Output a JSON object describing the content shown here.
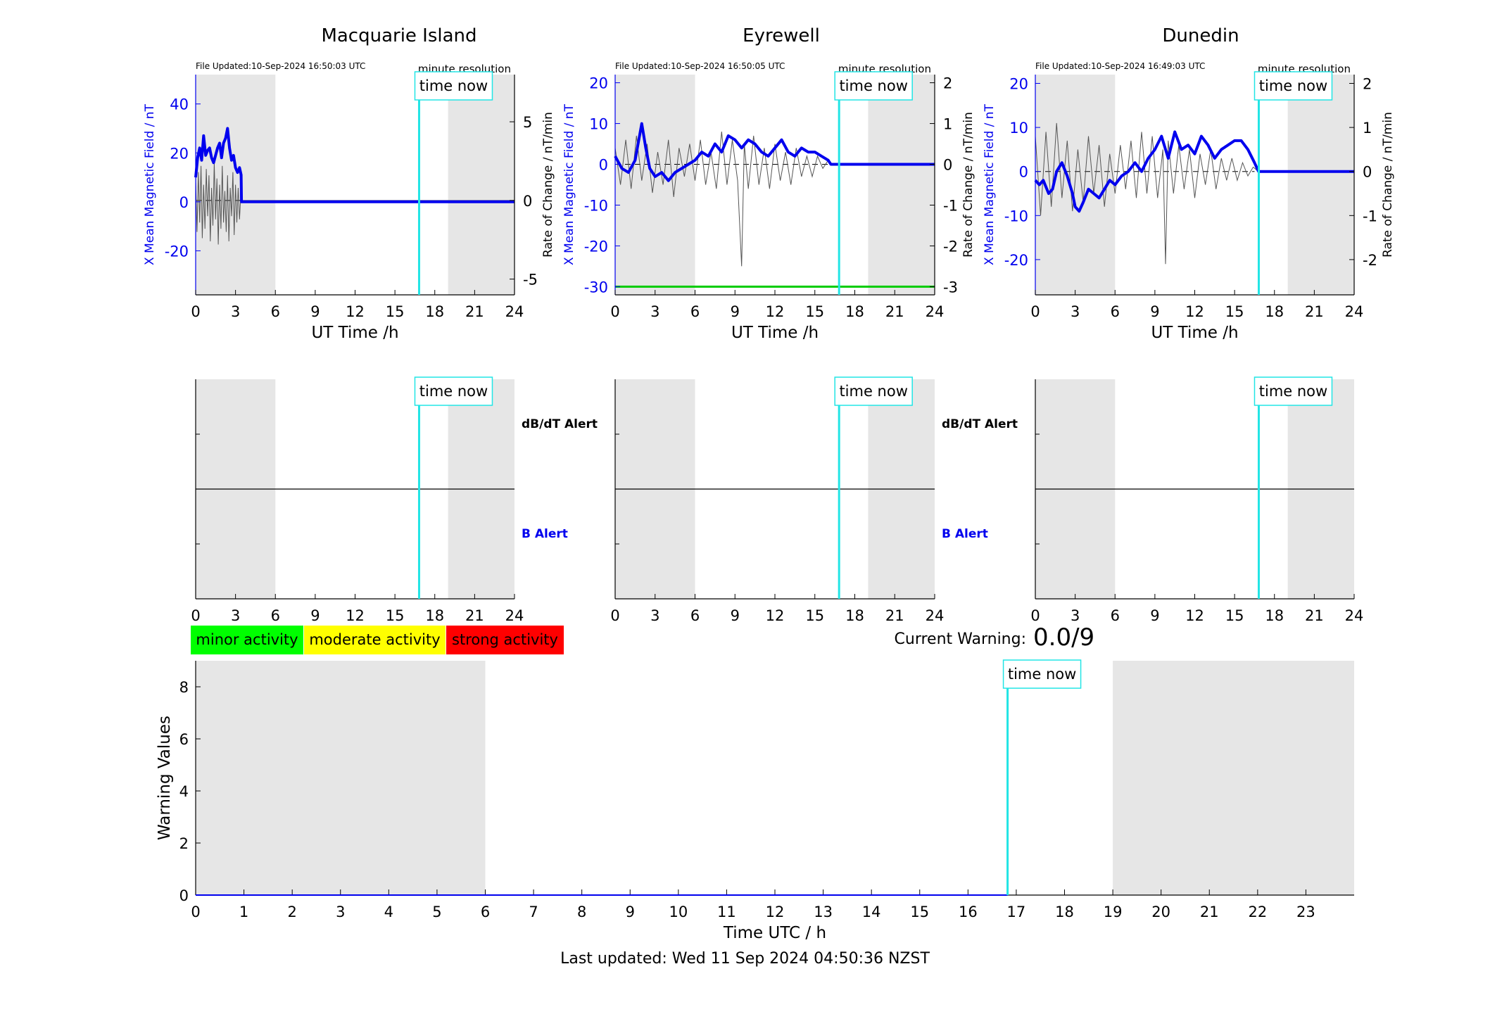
{
  "colors": {
    "night_shade": "#e6e6e6",
    "field_line": "#0000ee",
    "rate_line": "#555555",
    "time_now": "#22e5e5",
    "threshold": "#00cc00",
    "minor": "#00ff00",
    "moderate": "#ffff00",
    "strong": "#ff0000"
  },
  "time_now_label": "time now",
  "time_now_hour": 16.82,
  "stations": [
    {
      "title": "Macquarie Island",
      "file_updated": "File Updated:10-Sep-2024 16:50:03 UTC",
      "resolution": "minute resolution",
      "left_axis_label": "X Mean Magnetic Field / nT",
      "right_axis_label": "Rate of Change / nT/min",
      "xlabel": "UT Time /h"
    },
    {
      "title": "Eyrewell",
      "file_updated": "File Updated:10-Sep-2024 16:50:05 UTC",
      "resolution": "minute resolution",
      "left_axis_label": "X Mean Magnetic Field / nT",
      "right_axis_label": "Rate of Change / nT/min",
      "xlabel": "UT Time /h"
    },
    {
      "title": "Dunedin",
      "file_updated": "File Updated:10-Sep-2024 16:49:03 UTC",
      "resolution": "minute resolution",
      "left_axis_label": "X Mean Magnetic Field / nT",
      "right_axis_label": "Rate of Change / nT/min",
      "xlabel": "UT Time /h"
    }
  ],
  "alert_labels": {
    "dbdt": "dB/dT Alert",
    "b": "B Alert"
  },
  "legend": {
    "minor": "minor activity",
    "moderate": "moderate activity",
    "strong": "strong activity"
  },
  "current_warning": {
    "label": "Current Warning:",
    "value": "0.0/9"
  },
  "bottom_chart": {
    "xlabel": "Time UTC / h",
    "ylabel": "Warning Values"
  },
  "footer": "Last updated: Wed 11 Sep 2024 04:50:36 NZST",
  "chart_data": [
    {
      "type": "line",
      "title": "Macquarie Island",
      "xlabel": "UT Time /h",
      "ylabel": "X Mean Magnetic Field / nT",
      "y2label": "Rate of Change / nT/min",
      "xlim": [
        0,
        24
      ],
      "ylim": [
        -38,
        52
      ],
      "y2lim": [
        -6,
        8
      ],
      "xticks": [
        0,
        3,
        6,
        9,
        12,
        15,
        18,
        21,
        24
      ],
      "yticks": [
        -20,
        0,
        20,
        40
      ],
      "y2ticks": [
        -5,
        0,
        5
      ],
      "night_bands": [
        [
          0,
          6
        ],
        [
          19,
          24
        ]
      ],
      "series": [
        {
          "axis": "left",
          "style": "thick-blue",
          "x": [
            0,
            0.15,
            0.3,
            0.45,
            0.6,
            0.75,
            0.9,
            1.05,
            1.2,
            1.35,
            1.5,
            1.65,
            1.8,
            1.95,
            2.1,
            2.25,
            2.4,
            2.55,
            2.7,
            2.85,
            3.0,
            3.15,
            3.3,
            3.42,
            3.45,
            24
          ],
          "y": [
            10,
            18,
            22,
            17,
            27,
            19,
            21,
            22,
            18,
            16,
            19,
            22,
            24,
            18,
            24,
            26,
            30,
            22,
            17,
            19,
            14,
            12,
            14,
            11,
            0,
            0
          ]
        },
        {
          "axis": "right",
          "style": "thin-grey",
          "x": [
            0,
            0.1,
            0.2,
            0.3,
            0.4,
            0.5,
            0.6,
            0.7,
            0.8,
            0.9,
            1.0,
            1.1,
            1.2,
            1.3,
            1.4,
            1.5,
            1.6,
            1.7,
            1.8,
            1.9,
            2.0,
            2.1,
            2.2,
            2.3,
            2.4,
            2.5,
            2.6,
            2.7,
            2.8,
            2.9,
            3.0,
            3.1,
            3.2,
            3.3,
            3.4,
            3.45,
            24
          ],
          "y": [
            1.2,
            -2.0,
            1.8,
            -1.4,
            2.2,
            -2.4,
            1.0,
            -1.8,
            2.0,
            -1.0,
            1.6,
            -2.6,
            0.8,
            -1.6,
            2.4,
            -1.2,
            1.4,
            -2.8,
            1.0,
            -1.8,
            2.2,
            -1.4,
            0.6,
            -2.0,
            1.6,
            -2.6,
            0.8,
            -1.0,
            1.8,
            -2.2,
            1.0,
            -1.4,
            0.8,
            -1.2,
            0.4,
            0,
            0
          ]
        }
      ]
    },
    {
      "type": "line",
      "title": "Eyrewell",
      "xlabel": "UT Time /h",
      "ylabel": "X Mean Magnetic Field / nT",
      "y2label": "Rate of Change / nT/min",
      "xlim": [
        0,
        24
      ],
      "ylim": [
        -32,
        22
      ],
      "y2lim": [
        -3.2,
        2.2
      ],
      "xticks": [
        0,
        3,
        6,
        9,
        12,
        15,
        18,
        21,
        24
      ],
      "yticks": [
        -30,
        -20,
        -10,
        0,
        10,
        20
      ],
      "y2ticks": [
        -3,
        -2,
        -1,
        0,
        1,
        2
      ],
      "night_bands": [
        [
          0,
          6
        ],
        [
          19,
          24
        ]
      ],
      "threshold": {
        "axis": "left",
        "y": -30
      },
      "series": [
        {
          "axis": "left",
          "style": "thick-blue",
          "x": [
            0,
            0.5,
            1.0,
            1.5,
            2.0,
            2.3,
            2.6,
            3.0,
            3.5,
            4.0,
            4.5,
            5.0,
            5.5,
            6.0,
            6.5,
            7.0,
            7.5,
            8.0,
            8.5,
            9.0,
            9.5,
            10.0,
            10.5,
            11.0,
            11.5,
            12.0,
            12.5,
            13.0,
            13.5,
            14.0,
            14.5,
            15.0,
            15.5,
            16.0,
            16.2,
            24
          ],
          "y": [
            2,
            -1,
            -2,
            1,
            10,
            4,
            -1,
            -3,
            -2,
            -4,
            -2,
            -1,
            0,
            1,
            3,
            2,
            5,
            3,
            7,
            6,
            4,
            6,
            5,
            3,
            2,
            4,
            6,
            3,
            2,
            4,
            3,
            3,
            2,
            1,
            0,
            0
          ]
        },
        {
          "axis": "right",
          "style": "thin-grey",
          "x": [
            0,
            0.4,
            0.8,
            1.2,
            1.6,
            2.0,
            2.4,
            2.8,
            3.2,
            3.6,
            4.0,
            4.4,
            4.8,
            5.2,
            5.6,
            6.0,
            6.4,
            6.8,
            7.2,
            7.6,
            8.0,
            8.4,
            8.8,
            9.2,
            9.5,
            9.7,
            10.0,
            10.4,
            10.8,
            11.2,
            11.6,
            12.0,
            12.4,
            12.8,
            13.2,
            13.6,
            14.0,
            14.4,
            14.8,
            15.2,
            15.6,
            16.0,
            16.2,
            24
          ],
          "y": [
            0.4,
            -0.5,
            0.6,
            -0.6,
            0.7,
            -0.4,
            0.5,
            -0.7,
            0.3,
            -0.5,
            0.6,
            -0.8,
            0.4,
            -0.3,
            0.5,
            -0.4,
            0.6,
            -0.5,
            0.3,
            -0.6,
            0.8,
            -0.5,
            0.6,
            -0.4,
            -2.5,
            0.5,
            -0.6,
            0.7,
            -0.5,
            0.4,
            -0.6,
            0.5,
            -0.4,
            0.3,
            -0.5,
            0.4,
            -0.3,
            0.2,
            -0.3,
            0.2,
            -0.1,
            0.1,
            0,
            0
          ]
        }
      ]
    },
    {
      "type": "line",
      "title": "Dunedin",
      "xlabel": "UT Time /h",
      "ylabel": "X Mean Magnetic Field / nT",
      "y2label": "Rate of Change / nT/min",
      "xlim": [
        0,
        24
      ],
      "ylim": [
        -28,
        22
      ],
      "y2lim": [
        -2.8,
        2.2
      ],
      "xticks": [
        0,
        3,
        6,
        9,
        12,
        15,
        18,
        21,
        24
      ],
      "yticks": [
        -20,
        -10,
        0,
        10,
        20
      ],
      "y2ticks": [
        -2,
        -1,
        0,
        1,
        2
      ],
      "night_bands": [
        [
          0,
          6
        ],
        [
          19,
          24
        ]
      ],
      "series": [
        {
          "axis": "left",
          "style": "thick-blue",
          "x": [
            0,
            0.3,
            0.6,
            1.0,
            1.3,
            1.6,
            2.0,
            2.4,
            2.8,
            3.0,
            3.3,
            3.6,
            4.0,
            4.4,
            4.8,
            5.2,
            5.6,
            6.0,
            6.5,
            7.0,
            7.5,
            8.0,
            8.5,
            9.0,
            9.5,
            10.0,
            10.5,
            11.0,
            11.5,
            12.0,
            12.5,
            13.0,
            13.5,
            14.0,
            14.5,
            15.0,
            15.5,
            16.0,
            16.5,
            16.8,
            24
          ],
          "y": [
            -2,
            -3,
            -2,
            -5,
            -4,
            0,
            2,
            -1,
            -5,
            -8,
            -9,
            -7,
            -4,
            -5,
            -6,
            -4,
            -2,
            -3,
            -1,
            0,
            2,
            0,
            3,
            5,
            8,
            3,
            9,
            5,
            6,
            4,
            8,
            6,
            3,
            5,
            6,
            7,
            7,
            5,
            2,
            0,
            0
          ]
        },
        {
          "axis": "right",
          "style": "thin-grey",
          "x": [
            0,
            0.4,
            0.8,
            1.2,
            1.6,
            2.0,
            2.4,
            2.8,
            3.2,
            3.6,
            4.0,
            4.4,
            4.8,
            5.2,
            5.6,
            6.0,
            6.4,
            6.8,
            7.2,
            7.6,
            8.0,
            8.4,
            8.8,
            9.2,
            9.6,
            9.8,
            10.0,
            10.4,
            10.8,
            11.2,
            11.6,
            12.0,
            12.4,
            12.8,
            13.2,
            13.6,
            14.0,
            14.4,
            14.8,
            15.2,
            15.6,
            16.0,
            16.4,
            16.8,
            24
          ],
          "y": [
            0.8,
            -1.0,
            0.9,
            -0.8,
            1.1,
            -0.6,
            0.7,
            -0.9,
            0.5,
            -0.7,
            0.8,
            -0.5,
            0.6,
            -0.8,
            0.4,
            -0.5,
            0.6,
            -0.4,
            0.7,
            -0.6,
            0.9,
            -0.5,
            0.8,
            -0.6,
            0.5,
            -2.1,
            0.7,
            -0.5,
            0.6,
            -0.4,
            0.5,
            -0.6,
            0.4,
            -0.3,
            0.5,
            -0.4,
            0.3,
            -0.2,
            0.3,
            -0.2,
            0.2,
            -0.1,
            0.1,
            0,
            0
          ]
        }
      ]
    },
    {
      "type": "line",
      "title": "",
      "xlabel": "Time UTC / h",
      "ylabel": "Warning Values",
      "xlim": [
        0,
        24
      ],
      "ylim": [
        0,
        9
      ],
      "xticks": [
        0,
        1,
        2,
        3,
        4,
        5,
        6,
        7,
        8,
        9,
        10,
        11,
        12,
        13,
        14,
        15,
        16,
        17,
        18,
        19,
        20,
        21,
        22,
        23
      ],
      "yticks": [
        0,
        2,
        4,
        6,
        8
      ],
      "night_bands": [
        [
          0,
          6
        ],
        [
          19,
          24
        ]
      ],
      "series": [
        {
          "x": [
            0,
            16.82
          ],
          "y": [
            0,
            0
          ]
        }
      ]
    }
  ]
}
